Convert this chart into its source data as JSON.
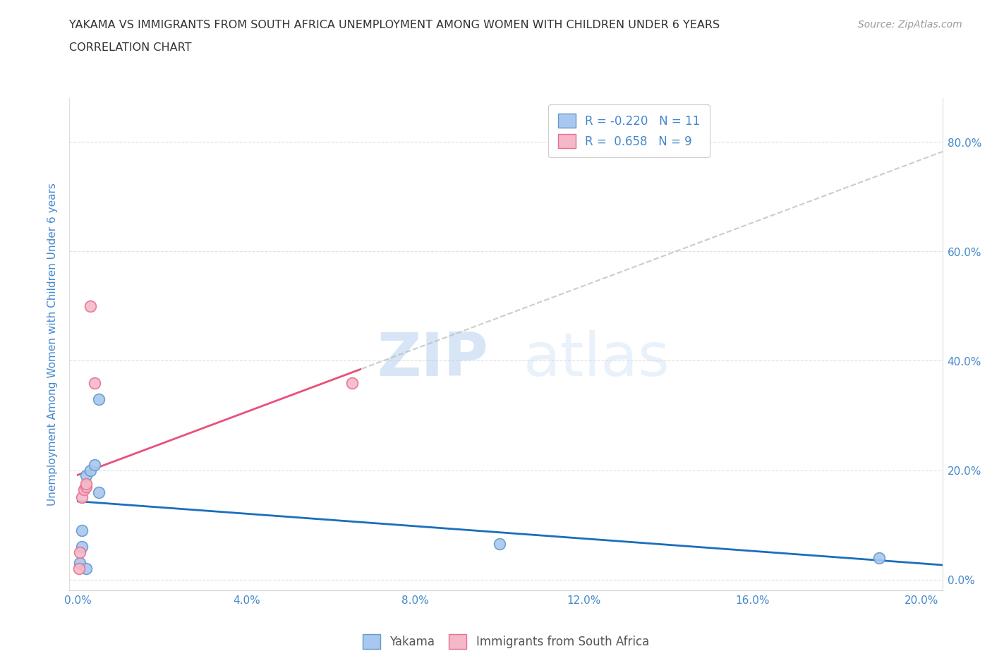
{
  "title_line1": "YAKAMA VS IMMIGRANTS FROM SOUTH AFRICA UNEMPLOYMENT AMONG WOMEN WITH CHILDREN UNDER 6 YEARS",
  "title_line2": "CORRELATION CHART",
  "source": "Source: ZipAtlas.com",
  "ylabel": "Unemployment Among Women with Children Under 6 years",
  "xlim": [
    -0.002,
    0.205
  ],
  "ylim": [
    -0.02,
    0.88
  ],
  "xticks": [
    0.0,
    0.04,
    0.08,
    0.12,
    0.16,
    0.2
  ],
  "yticks_right": [
    0.0,
    0.2,
    0.4,
    0.6,
    0.8
  ],
  "yakama_x": [
    0.0005,
    0.001,
    0.001,
    0.002,
    0.002,
    0.003,
    0.004,
    0.005,
    0.005,
    0.1,
    0.19
  ],
  "yakama_y": [
    0.03,
    0.06,
    0.09,
    0.02,
    0.19,
    0.2,
    0.21,
    0.33,
    0.16,
    0.065,
    0.04
  ],
  "sa_x": [
    0.0003,
    0.0005,
    0.001,
    0.0015,
    0.002,
    0.002,
    0.003,
    0.004,
    0.065
  ],
  "sa_y": [
    0.02,
    0.05,
    0.15,
    0.165,
    0.17,
    0.175,
    0.5,
    0.36,
    0.36
  ],
  "yakama_color": "#a8c8f0",
  "sa_color": "#f4b8c8",
  "yakama_edge": "#6699cc",
  "sa_edge": "#e87090",
  "trend_yakama_color": "#1a6fbc",
  "trend_sa_color": "#e8507a",
  "trend_dashed_color": "#bbbbbb",
  "R_yakama": -0.22,
  "N_yakama": 11,
  "R_sa": 0.658,
  "N_sa": 9,
  "watermark_zip": "ZIP",
  "watermark_atlas": "atlas",
  "background_color": "#ffffff",
  "grid_color": "#dddddd",
  "title_color": "#333333",
  "axis_label_color": "#4488cc",
  "tick_label_color": "#4488cc",
  "legend_label1": "Yakama",
  "legend_label2": "Immigrants from South Africa",
  "marker_size": 130
}
